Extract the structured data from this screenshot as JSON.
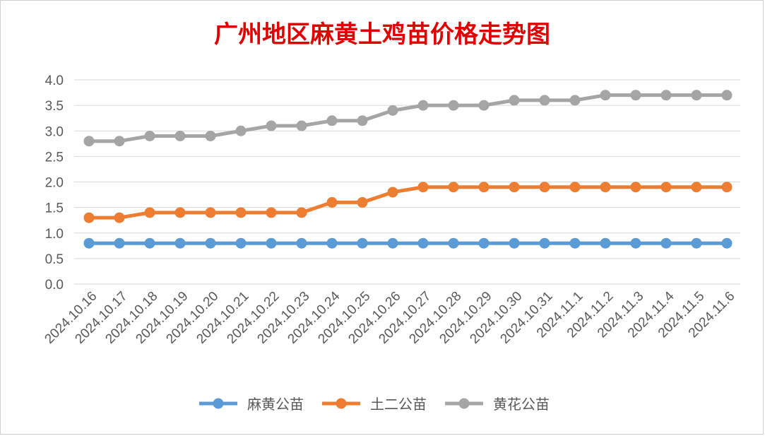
{
  "chart_data": {
    "type": "line",
    "title": "广州地区麻黄土鸡苗价格走势图",
    "categories": [
      "2024.10.16",
      "2024.10.17",
      "2024.10.18",
      "2024.10.19",
      "2024.10.20",
      "2024.10.21",
      "2024.10.22",
      "2024.10.23",
      "2024.10.24",
      "2024.10.25",
      "2024.10.26",
      "2024.10.27",
      "2024.10.28",
      "2024.10.29",
      "2024.10.30",
      "2024.10.31",
      "2024.11.1",
      "2024.11.2",
      "2024.11.3",
      "2024.11.4",
      "2024.11.5",
      "2024.11.6"
    ],
    "series": [
      {
        "name": "麻黄公苗",
        "color": "#5b9bd5",
        "values": [
          0.8,
          0.8,
          0.8,
          0.8,
          0.8,
          0.8,
          0.8,
          0.8,
          0.8,
          0.8,
          0.8,
          0.8,
          0.8,
          0.8,
          0.8,
          0.8,
          0.8,
          0.8,
          0.8,
          0.8,
          0.8,
          0.8
        ]
      },
      {
        "name": "土二公苗",
        "color": "#ed7d31",
        "values": [
          1.3,
          1.3,
          1.4,
          1.4,
          1.4,
          1.4,
          1.4,
          1.4,
          1.6,
          1.6,
          1.8,
          1.9,
          1.9,
          1.9,
          1.9,
          1.9,
          1.9,
          1.9,
          1.9,
          1.9,
          1.9,
          1.9
        ]
      },
      {
        "name": "黄花公苗",
        "color": "#a5a5a5",
        "values": [
          2.8,
          2.8,
          2.9,
          2.9,
          2.9,
          3.0,
          3.1,
          3.1,
          3.2,
          3.2,
          3.4,
          3.5,
          3.5,
          3.5,
          3.6,
          3.6,
          3.6,
          3.7,
          3.7,
          3.7,
          3.7,
          3.7
        ]
      }
    ],
    "yticks": [
      "0.0",
      "0.5",
      "1.0",
      "1.5",
      "2.0",
      "2.5",
      "3.0",
      "3.5",
      "4.0"
    ],
    "ylim": [
      0,
      4
    ],
    "grid": true,
    "legend_position": "bottom"
  }
}
